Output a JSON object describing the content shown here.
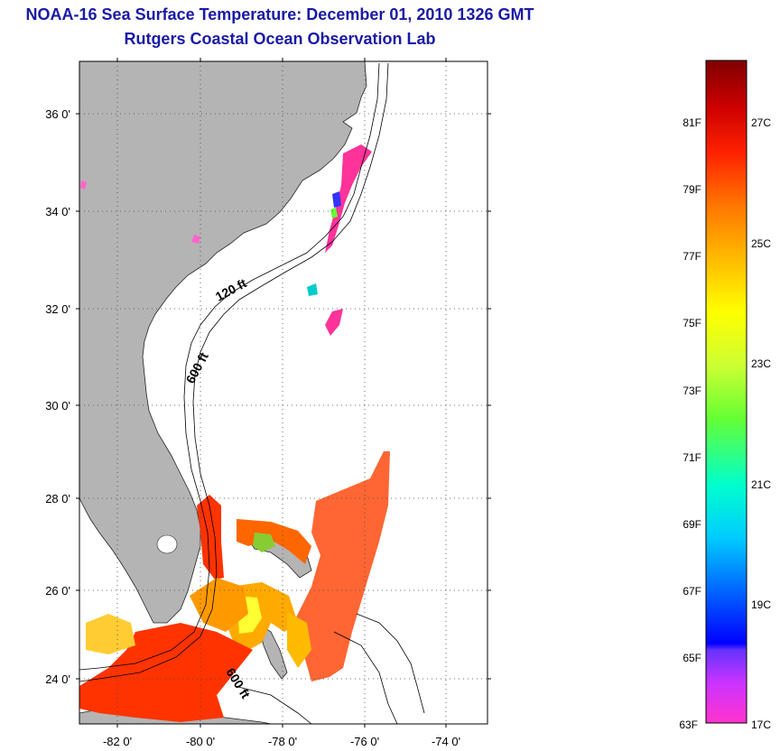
{
  "header": {
    "title": "NOAA-16 Sea Surface Temperature:  December 01, 2010 1326 GMT",
    "subtitle": "Rutgers Coastal Ocean Observation Lab"
  },
  "map": {
    "lat_labels": [
      "36 0'",
      "34 0'",
      "32 0'",
      "30 0'",
      "28 0'",
      "26 0'",
      "24 0'"
    ],
    "lon_labels": [
      "-82 0'",
      "-80 0'",
      "-78 0'",
      "-76 0'",
      "-74 0'"
    ],
    "contour_labels": [
      "120 ft",
      "600 ft",
      "600 ft"
    ],
    "land_color": "#b4b4b4",
    "grid": "dotted"
  },
  "colorbar": {
    "fahrenheit_labels": [
      "81F",
      "79F",
      "77F",
      "75F",
      "73F",
      "71F",
      "69F",
      "67F",
      "65F",
      "63F"
    ],
    "celsius_labels": [
      "27C",
      "25C",
      "23C",
      "21C",
      "19C",
      "17C"
    ],
    "colors_bottom_to_top": [
      "#ff33cc",
      "#9933ff",
      "#0000ff",
      "#0099ff",
      "#00ffff",
      "#33ff66",
      "#ccff33",
      "#ffff00",
      "#ffaa00",
      "#ff6600",
      "#ff0000",
      "#cc0000",
      "#800000"
    ]
  }
}
